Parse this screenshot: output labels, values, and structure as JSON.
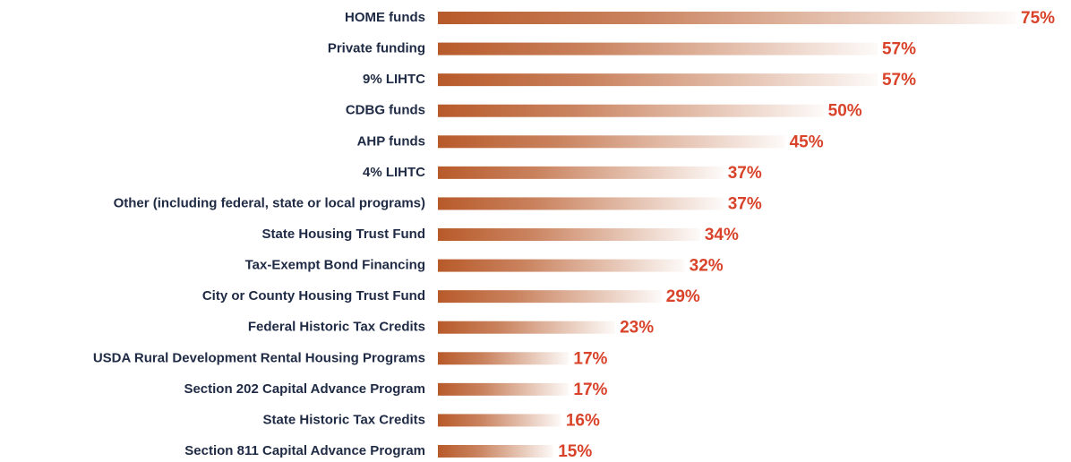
{
  "chart_data": {
    "type": "bar",
    "orientation": "horizontal",
    "categories": [
      "HOME funds",
      "Private funding",
      "9% LIHTC",
      "CDBG funds",
      "AHP funds",
      "4% LIHTC",
      "Other (including federal, state or local programs)",
      "State Housing Trust Fund",
      "Tax-Exempt Bond Financing",
      "City or County Housing Trust Fund",
      "Federal Historic Tax Credits",
      "USDA Rural Development Rental Housing Programs",
      "Section 202 Capital Advance Program",
      "State Historic Tax Credits",
      "Section 811 Capital Advance Program"
    ],
    "values": [
      75,
      57,
      57,
      50,
      45,
      37,
      37,
      34,
      32,
      29,
      23,
      17,
      17,
      16,
      15
    ],
    "value_labels": [
      "75%",
      "57%",
      "57%",
      "50%",
      "45%",
      "37%",
      "37%",
      "34%",
      "32%",
      "29%",
      "23%",
      "17%",
      "17%",
      "16%",
      "15%"
    ],
    "color": "#b85a2a"
  }
}
